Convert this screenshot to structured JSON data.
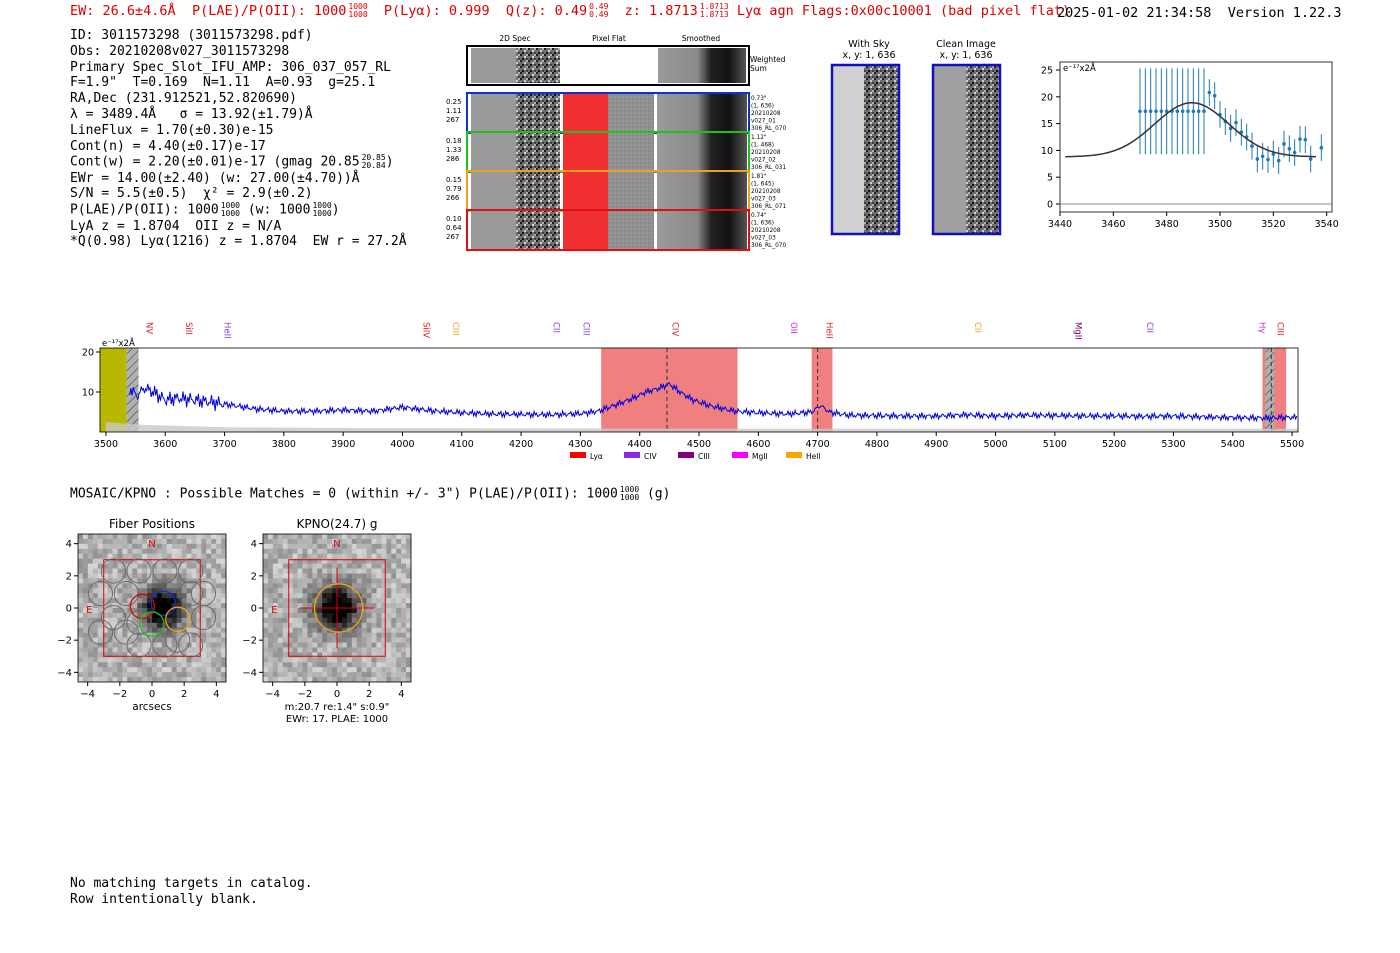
{
  "header": {
    "ew": "EW: 26.6±4.6Å",
    "plae_label": "P(LAE)/P(OII): 1000",
    "plae_frac": [
      "1000",
      "1000"
    ],
    "plya": "P(Lyα): 0.999",
    "qz_label": "Q(z): 0.49",
    "qz_frac": [
      "0.49",
      "0.49"
    ],
    "z_label": "z: 1.8713",
    "z_frac": [
      "1.8713",
      "1.8713"
    ],
    "tail": "Lyα  agn  Flags:0x00c10001  (bad pixel flat)",
    "timestamp": "2025-01-02 21:34:58",
    "version": "Version 1.22.3",
    "color": "#e00000"
  },
  "info": {
    "id": "ID: 3011573298 (3011573298.pdf)",
    "obs": "Obs: 20210208v027_3011573298",
    "spec": "Primary Spec_Slot_IFU_AMP: 306_037_057_RL",
    "fwhm": "F=1.9\"  T=0.169  N=1.11  A=0.93  g=25.1",
    "radec": "RA,Dec (231.912521,52.820690)",
    "lambda": "λ = 3489.4Å   σ = 13.92(±1.79)Å",
    "lineflux": "LineFlux = 1.70(±0.30)e-15",
    "contn": "Cont(n) = 4.40(±0.17)e-17",
    "contw": "Cont(w) = 2.20(±0.01)e-17 (gmag 20.85",
    "contw_frac": [
      "20.85",
      "20.84"
    ],
    "contw_end": ")",
    "ewr": "EWr = 14.00(±2.40) (w: 27.00(±4.70))Å",
    "sn": "S/N = 5.5(±0.5)  χ² = 2.9(±0.2)",
    "plae": "P(LAE)/P(OII): 1000",
    "plae_frac": [
      "1000",
      "1000"
    ],
    "plae_w": "(w: 1000",
    "plae_w_frac": [
      "1000",
      "1000"
    ],
    "plae_end": ")",
    "lya": "LyA z = 1.8704  OII z = N/A",
    "q": "*Q(0.98) Lyα(1216) z = 1.8704  EW r = 27.2Å"
  },
  "spec2d": {
    "col_titles": [
      "2D Spec",
      "Pixel Flat",
      "Smoothed"
    ],
    "weighted": [
      "Weighted",
      "Sum"
    ],
    "rows": [
      {
        "left": [
          "0.25",
          "1.11",
          "267"
        ],
        "right": [
          "0.73\"",
          "(1, 636)",
          "20210208",
          "v027_01",
          "306_RL_070"
        ],
        "color": "#1030d0"
      },
      {
        "left": [
          "0.18",
          "1.33",
          "286"
        ],
        "right": [
          "1.12\"",
          "(1, 468)",
          "20210208",
          "v027_02",
          "306_RL_031"
        ],
        "color": "#20c020"
      },
      {
        "left": [
          "0.15",
          "0.79",
          "266"
        ],
        "right": [
          "1.81\"",
          "(1, 645)",
          "20210208",
          "v027_03",
          "306_RL_071"
        ],
        "color": "#f0a020"
      },
      {
        "left": [
          "0.10",
          "0.64",
          "267"
        ],
        "right": [
          "0.74\"",
          "(1, 636)",
          "20210208",
          "v027_03",
          "306_RL_070"
        ],
        "color": "#e01010"
      }
    ]
  },
  "cutouts": [
    {
      "title": "With Sky",
      "sub": "x, y: 1, 636"
    },
    {
      "title": "Clean Image",
      "sub": "x, y: 1, 636"
    }
  ],
  "chart_data": [
    {
      "type": "scatter",
      "name": "line-fit",
      "title": "",
      "unit_label": "e⁻¹⁷x2Å",
      "xlim": [
        3440,
        3542
      ],
      "ylim": [
        -1.5,
        26.5
      ],
      "xticks": [
        3440,
        3460,
        3480,
        3500,
        3520,
        3540
      ],
      "yticks": [
        0,
        5,
        10,
        15,
        20,
        25
      ],
      "points": [
        {
          "x": 3470,
          "y": 17.3,
          "err": 8
        },
        {
          "x": 3472,
          "y": 17.3,
          "err": 8
        },
        {
          "x": 3474,
          "y": 17.3,
          "err": 8
        },
        {
          "x": 3476,
          "y": 17.3,
          "err": 8
        },
        {
          "x": 3478,
          "y": 17.3,
          "err": 8
        },
        {
          "x": 3480,
          "y": 17.3,
          "err": 8
        },
        {
          "x": 3482,
          "y": 17.3,
          "err": 8
        },
        {
          "x": 3484,
          "y": 17.3,
          "err": 8
        },
        {
          "x": 3486,
          "y": 17.3,
          "err": 8
        },
        {
          "x": 3488,
          "y": 17.3,
          "err": 8
        },
        {
          "x": 3490,
          "y": 17.3,
          "err": 8
        },
        {
          "x": 3492,
          "y": 17.3,
          "err": 8
        },
        {
          "x": 3494,
          "y": 17.3,
          "err": 8
        },
        {
          "x": 3496,
          "y": 20.8,
          "err": 2.5
        },
        {
          "x": 3498,
          "y": 20.2,
          "err": 2.5
        },
        {
          "x": 3500,
          "y": 16.7,
          "err": 2.5
        },
        {
          "x": 3502,
          "y": 15.4,
          "err": 2.5
        },
        {
          "x": 3504,
          "y": 14.1,
          "err": 2.5
        },
        {
          "x": 3506,
          "y": 15.2,
          "err": 2.5
        },
        {
          "x": 3508,
          "y": 13.4,
          "err": 2.5
        },
        {
          "x": 3510,
          "y": 12.5,
          "err": 2.5
        },
        {
          "x": 3512,
          "y": 10.8,
          "err": 2.5
        },
        {
          "x": 3514,
          "y": 8.4,
          "err": 2.5
        },
        {
          "x": 3516,
          "y": 8.9,
          "err": 2.5
        },
        {
          "x": 3518,
          "y": 8.3,
          "err": 2.5
        },
        {
          "x": 3520,
          "y": 9.3,
          "err": 2.5
        },
        {
          "x": 3522,
          "y": 8.1,
          "err": 2.5
        },
        {
          "x": 3524,
          "y": 11.2,
          "err": 2.5
        },
        {
          "x": 3526,
          "y": 10.3,
          "err": 2.5
        },
        {
          "x": 3528,
          "y": 9.6,
          "err": 2.5
        },
        {
          "x": 3530,
          "y": 12.1,
          "err": 2.5
        },
        {
          "x": 3532,
          "y": 12.0,
          "err": 2.5
        },
        {
          "x": 3534,
          "y": 8.4,
          "err": 2.5
        },
        {
          "x": 3538,
          "y": 10.5,
          "err": 2.5
        }
      ],
      "fit": {
        "center": 3489.4,
        "sigma": 13.92,
        "continuum": 8.8,
        "amplitude": 10.1,
        "x_range": [
          3442,
          3536
        ]
      }
    },
    {
      "type": "line",
      "name": "full-spectrum",
      "unit_label": "e⁻¹⁷x2Å",
      "xlim": [
        3490,
        5510
      ],
      "ylim": [
        0,
        21
      ],
      "xticks": [
        3500,
        3600,
        3700,
        3800,
        3900,
        4000,
        4100,
        4200,
        4300,
        4400,
        4500,
        4600,
        4700,
        4800,
        4900,
        5000,
        5100,
        5200,
        5300,
        5400,
        5500
      ],
      "yticks": [
        10,
        20
      ],
      "series": [
        {
          "name": "flux",
          "color": "#0000e0",
          "x": [
            3540,
            3552,
            3565,
            3580,
            3600,
            3620,
            3650,
            3700,
            3750,
            3800,
            3850,
            3900,
            3950,
            4000,
            4050,
            4100,
            4150,
            4200,
            4250,
            4300,
            4330,
            4360,
            4390,
            4410,
            4430,
            4450,
            4470,
            4490,
            4520,
            4560,
            4600,
            4650,
            4690,
            4705,
            4720,
            4750,
            4800,
            4850,
            4900,
            4950,
            5000,
            5050,
            5100,
            5150,
            5200,
            5250,
            5300,
            5350,
            5400,
            5450,
            5480,
            5510
          ],
          "y": [
            11,
            9,
            11,
            10,
            8,
            8.5,
            8,
            7,
            5.8,
            5.2,
            5.2,
            5.5,
            5.2,
            6.2,
            5.3,
            4.8,
            4.5,
            4.4,
            4.3,
            4.6,
            5.2,
            6.8,
            8.5,
            10,
            10.8,
            12,
            9.8,
            8,
            6.5,
            5.2,
            4.8,
            4.5,
            5,
            6.6,
            5,
            4.2,
            4.1,
            4.0,
            4.0,
            4.3,
            4.0,
            4.2,
            4.1,
            4.0,
            4.0,
            3.9,
            4.0,
            3.8,
            3.6,
            3.5,
            3.6,
            3.7
          ]
        },
        {
          "name": "noise",
          "color": "#c8c8c8",
          "x": [
            3500,
            3560,
            3700,
            3900,
            4200,
            4600,
            5000,
            5400,
            5510
          ],
          "y": [
            2.5,
            1.8,
            1.2,
            1.0,
            0.9,
            0.8,
            0.8,
            0.8,
            0.8
          ]
        }
      ],
      "bands": [
        {
          "from": 3490,
          "to": 3535,
          "color": "#b8b800"
        },
        {
          "from": 3535,
          "to": 3555,
          "color": "#b0b0b0",
          "hatch": true
        },
        {
          "from": 4335,
          "to": 4565,
          "color": "#f08080"
        },
        {
          "from": 4690,
          "to": 4725,
          "color": "#f08080"
        },
        {
          "from": 5450,
          "to": 5490,
          "color": "#f08080"
        },
        {
          "from": 5455,
          "to": 5470,
          "color": "#b0b0b0",
          "hatch": true
        }
      ],
      "dashed_lines": [
        4446,
        4700,
        5465
      ],
      "line_labels": [
        {
          "x": 3563,
          "label": "NV",
          "color": "#e02020"
        },
        {
          "x": 3630,
          "label": "SiII",
          "color": "#e02020"
        },
        {
          "x": 3695,
          "label": "HeII",
          "color": "#8040e0"
        },
        {
          "x": 4030,
          "label": "SiIV",
          "color": "#e02020"
        },
        {
          "x": 4080,
          "label": "CIII",
          "color": "#f0a020"
        },
        {
          "x": 4250,
          "label": "CII",
          "color": "#8040e0"
        },
        {
          "x": 4300,
          "label": "CIII",
          "color": "#8040e0"
        },
        {
          "x": 4450,
          "label": "CIV",
          "color": "#e02020"
        },
        {
          "x": 4650,
          "label": "OII",
          "color": "#e020e0"
        },
        {
          "x": 4710,
          "label": "HeII",
          "color": "#e02020"
        },
        {
          "x": 4960,
          "label": "CII",
          "color": "#f0a020"
        },
        {
          "x": 5130,
          "label": "MgII",
          "color": "#800080"
        },
        {
          "x": 5250,
          "label": "CII",
          "color": "#8040e0"
        },
        {
          "x": 5440,
          "label": "Hγ",
          "color": "#e020e0"
        },
        {
          "x": 5470,
          "label": "CIII",
          "color": "#e02020"
        }
      ],
      "legend": [
        {
          "label": "Lyα",
          "color": "#ff0000"
        },
        {
          "label": "CIV",
          "color": "#8a2be2"
        },
        {
          "label": "CIII",
          "color": "#800080"
        },
        {
          "label": "MgII",
          "color": "#ff00ff"
        },
        {
          "label": "HeII",
          "color": "#ffa500"
        }
      ]
    },
    {
      "type": "heatmap",
      "name": "fiber-positions",
      "title": "Fiber Positions",
      "xlabel": "arcsecs",
      "xlim": [
        -4.6,
        4.6
      ],
      "ylim": [
        -4.6,
        4.6
      ],
      "xticks": [
        -4,
        -2,
        0,
        2,
        4
      ],
      "yticks": [
        4,
        2,
        0,
        -2,
        -4
      ],
      "compass": [
        "N",
        "E"
      ],
      "fibers": [
        {
          "x": -0.6,
          "y": 0.1,
          "color": "#e00000"
        },
        {
          "x": 0.7,
          "y": 0.3,
          "color": "#1030d0"
        },
        {
          "x": 0.0,
          "y": -1.0,
          "color": "#20c020"
        },
        {
          "x": 1.6,
          "y": -0.7,
          "color": "#f0a020"
        }
      ]
    },
    {
      "type": "heatmap",
      "name": "kpno-cutout",
      "title": "KPNO(24.7) g",
      "xlim": [
        -4.6,
        4.6
      ],
      "ylim": [
        -4.6,
        4.6
      ],
      "xticks": [
        -4,
        -2,
        0,
        2,
        4
      ],
      "yticks": [
        4,
        2,
        0,
        -2,
        -4
      ],
      "compass": [
        "N",
        "E"
      ],
      "caption": [
        "m:20.7  re:1.4\"  s:0.9\"",
        "EWr: 17, PLAE: 1000"
      ]
    }
  ],
  "mosaic": {
    "text": "MOSAIC/KPNO : Possible Matches = 0 (within +/- 3\")  P(LAE)/P(OII): 1000",
    "frac": [
      "1000",
      "1000"
    ],
    "end": "(g)"
  },
  "footer": {
    "line1": "No matching targets in catalog.",
    "line2": "Row intentionally blank."
  }
}
